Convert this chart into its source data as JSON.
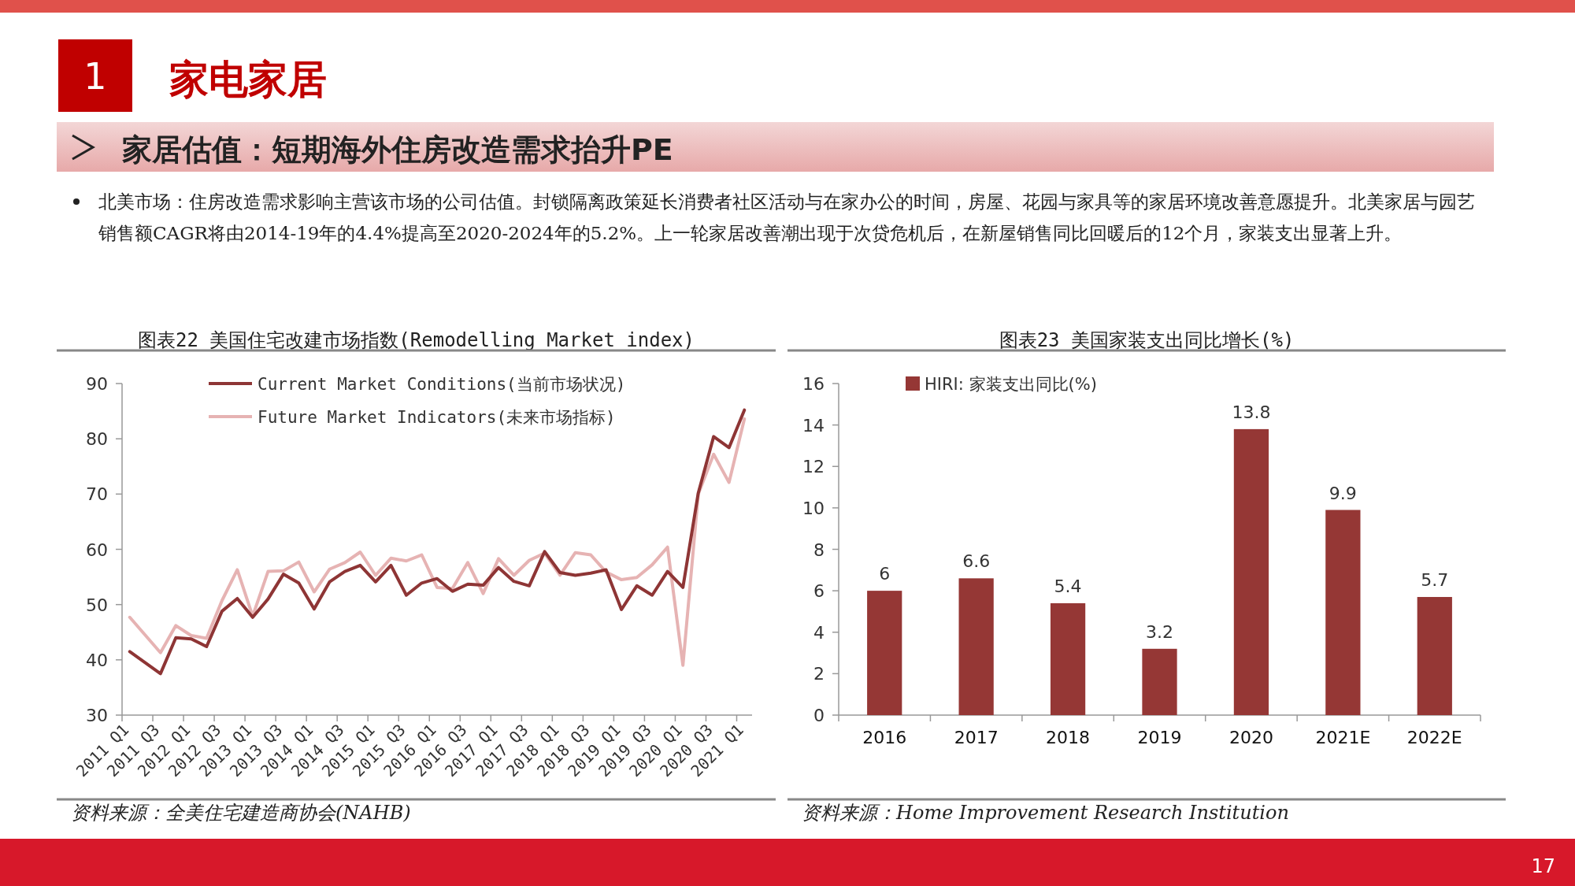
{
  "chart_data": [
    {
      "type": "line",
      "title": "图表22 美国住宅改建市场指数(Remodelling Market index)",
      "annotations": [
        "1",
        "家电家居",
        "家居估值：短期海外住房改造需求抬升PE",
        "北美市场：住房改造需求影响主营该市场的公司估值。封锁隔离政策延长消费者社区活动与在家办公的时间，房屋、花园与家具等的家居环境改善意愿提升。北美家居与园艺销售额CAGR将由2014-19年的4.4%提高至2020-2024年的5.2%。上一轮家居改善潮出现于次贷危机后，在新屋销售同比回暖后的12个月，家装支出显著上升。",
        "资料来源：全美住宅建造商协会(NAHB)",
        "17"
      ],
      "categories": [
        "2011 Q1",
        null,
        "2011 Q3",
        null,
        "2012 Q1",
        null,
        "2012 Q3",
        null,
        "2013 Q1",
        null,
        "2013 Q3",
        null,
        "2014 Q1",
        null,
        "2014 Q3",
        null,
        "2015 Q1",
        null,
        "2015 Q3",
        null,
        "2016 Q1",
        null,
        "2016 Q3",
        null,
        "2017 Q1",
        null,
        "2017 Q3",
        null,
        "2018 Q1",
        null,
        "2018 Q3",
        null,
        "2019 Q1",
        null,
        "2019 Q3",
        null,
        "2020 Q1",
        null,
        "2020 Q3",
        null,
        "2021 Q1"
      ],
      "series": [
        {
          "name": "Current Market Conditions(当前市场状况)",
          "color": "#8e3535",
          "values": [
            41.5,
            39.5,
            37.5,
            44.0,
            43.8,
            42.4,
            48.8,
            51.1,
            47.7,
            51.0,
            55.5,
            53.9,
            49.2,
            54.1,
            56.0,
            57.1,
            54.1,
            57.1,
            51.7,
            53.9,
            54.7,
            52.4,
            53.7,
            53.5,
            56.7,
            54.2,
            53.4,
            59.6,
            55.8,
            55.3,
            55.7,
            56.3,
            49.1,
            53.4,
            51.7,
            56.0,
            53.1,
            70.2,
            80.4,
            78.4,
            85.2
          ]
        },
        {
          "name": "Future Market Indicators(未来市场指标)",
          "color": "#e6b3b3",
          "values": [
            47.7,
            44.5,
            41.3,
            46.2,
            44.4,
            43.9,
            50.7,
            56.3,
            47.9,
            56.0,
            56.1,
            57.7,
            52.3,
            56.4,
            57.6,
            59.5,
            55.3,
            58.4,
            57.9,
            59.0,
            53.1,
            52.9,
            57.6,
            52.0,
            58.3,
            55.3,
            58.0,
            59.3,
            55.3,
            59.4,
            59.0,
            55.9,
            54.5,
            54.9,
            57.2,
            60.4,
            39.0,
            70.0,
            77.2,
            72.1,
            83.6
          ]
        }
      ],
      "ylim": [
        30,
        90
      ],
      "yticks": [
        30,
        40,
        50,
        60,
        70,
        80,
        90
      ],
      "legend": "top left",
      "grid": false
    },
    {
      "type": "bar",
      "title": "图表23 美国家装支出同比增长(%)",
      "annotations": [
        "资料来源：Home Improvement Research Institution"
      ],
      "categories": [
        "2016",
        "2017",
        "2018",
        "2019",
        "2020",
        "2021E",
        "2022E"
      ],
      "series": [
        {
          "name": "HIRI: 家装支出同比(%)",
          "color": "#953735",
          "values": [
            6,
            6.6,
            5.4,
            3.2,
            13.8,
            9.9,
            5.7
          ]
        }
      ],
      "ylim": [
        0,
        16
      ],
      "yticks": [
        0,
        2,
        4,
        6,
        8,
        10,
        12,
        14,
        16
      ],
      "data_labels": true,
      "legend": "top left",
      "grid": false
    }
  ]
}
